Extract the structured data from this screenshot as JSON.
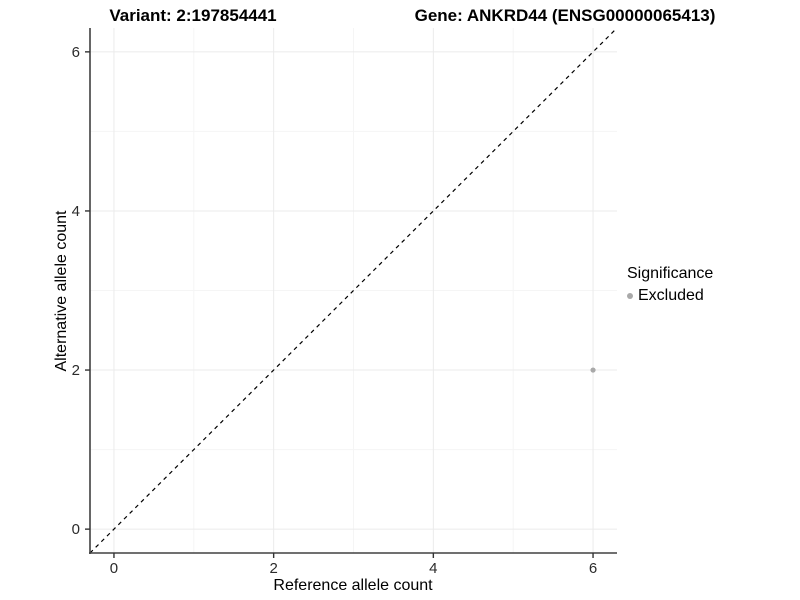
{
  "titles": {
    "left": "Variant: 2:197854441",
    "right": "Gene: ANKRD44 (ENSG00000065413)"
  },
  "legend": {
    "title": "Significance",
    "items": [
      {
        "label": "Excluded",
        "color": "#a9a9a9"
      }
    ]
  },
  "chart_data": {
    "type": "scatter",
    "title": "Variant: 2:197854441 / Gene: ANKRD44 (ENSG00000065413)",
    "xlabel": "Reference allele count",
    "ylabel": "Alternative allele count",
    "xlim": [
      -0.3,
      6.3
    ],
    "ylim": [
      -0.3,
      6.3
    ],
    "x_ticks": [
      0,
      2,
      4,
      6
    ],
    "y_ticks": [
      0,
      2,
      4,
      6
    ],
    "x_minor_ticks": [
      1,
      3,
      5
    ],
    "y_minor_ticks": [
      1,
      3,
      5
    ],
    "grid": "major+minor",
    "legend_position": "right",
    "series": [
      {
        "name": "Excluded",
        "color": "#a9a9a9",
        "points": [
          {
            "x": 6,
            "y": 2
          }
        ]
      }
    ],
    "reference_line": {
      "type": "identity",
      "equation": "y = x",
      "style": "dashed",
      "color": "#000000",
      "x1": -0.3,
      "y1": -0.3,
      "x2": 6.3,
      "y2": 6.3
    }
  },
  "colors": {
    "background": "#ffffff",
    "grid_major": "#ebebeb",
    "grid_minor": "#f5f5f5",
    "axis_line": "#404040",
    "tick_mark": "#333333",
    "tick_label": "#2b2b2b",
    "point": "#a9a9a9"
  }
}
